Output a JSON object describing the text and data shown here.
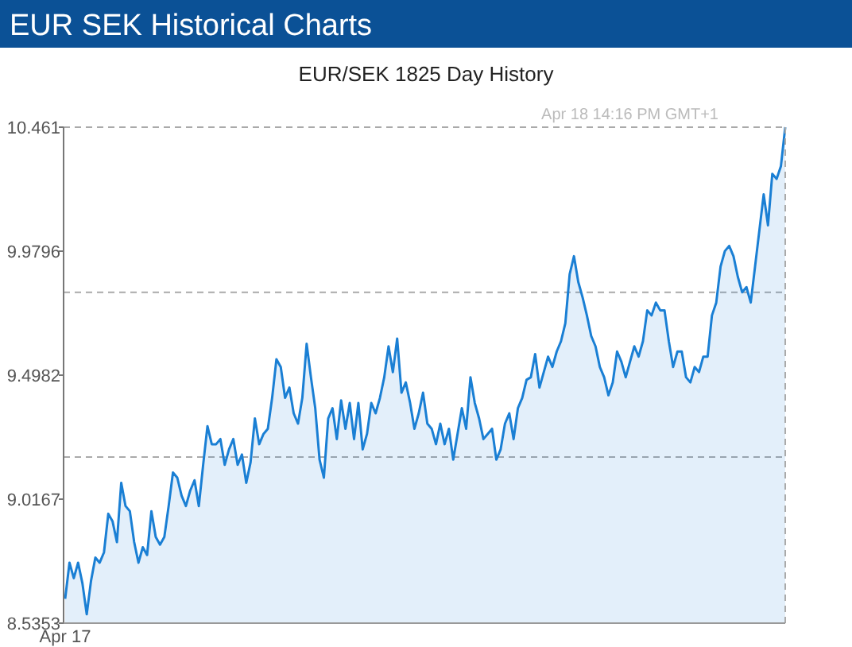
{
  "chart_data": {
    "type": "area",
    "title": "EUR SEK Historical Charts",
    "subtitle": "EUR/SEK  1825 Day History",
    "annotations": [
      "Apr 18  14:16 PM GMT+1"
    ],
    "categories": [
      "Apr 17",
      null,
      null,
      null,
      null,
      null,
      null,
      null,
      null,
      null,
      null,
      null,
      null,
      null,
      null,
      null,
      null,
      null,
      null,
      null,
      null,
      null,
      null,
      null,
      null,
      null,
      null,
      null,
      null,
      null,
      null,
      null,
      null,
      null,
      null,
      null,
      null,
      null,
      null,
      null,
      null,
      null,
      null,
      null,
      null,
      null,
      null,
      null,
      null,
      null,
      null,
      null,
      null,
      null,
      null,
      null,
      null,
      null,
      null,
      null,
      null,
      null,
      null,
      null,
      null,
      null,
      null,
      null,
      null,
      null,
      null,
      null,
      null,
      null,
      null,
      null,
      null,
      null,
      null,
      null,
      null,
      null,
      null,
      null,
      null,
      null,
      null,
      null,
      null,
      null,
      null,
      null,
      null,
      null,
      null,
      null,
      null,
      null,
      null,
      null,
      null,
      null,
      null,
      null,
      null,
      null,
      null,
      null,
      null,
      null,
      null,
      null,
      null,
      null,
      null,
      null,
      null,
      null,
      null,
      null,
      null,
      null,
      null,
      null,
      null,
      null,
      null,
      null,
      null,
      null,
      null,
      null,
      null,
      null,
      null,
      null,
      null,
      null,
      null,
      null,
      null,
      null,
      null,
      null,
      null,
      null,
      null,
      null,
      null,
      null,
      null,
      null,
      null,
      null,
      null,
      null,
      null,
      null,
      null,
      null,
      null,
      null,
      null,
      null,
      null,
      null,
      null,
      null
    ],
    "series": [
      {
        "color": "#1a7fd4",
        "values": [
          8.63,
          8.77,
          8.71,
          8.77,
          8.69,
          8.57,
          8.7,
          8.79,
          8.77,
          8.81,
          8.96,
          8.93,
          8.85,
          9.08,
          8.99,
          8.97,
          8.85,
          8.77,
          8.83,
          8.8,
          8.97,
          8.87,
          8.84,
          8.87,
          8.99,
          9.12,
          9.1,
          9.03,
          8.99,
          9.05,
          9.09,
          8.99,
          9.15,
          9.3,
          9.23,
          9.23,
          9.25,
          9.15,
          9.21,
          9.25,
          9.15,
          9.19,
          9.08,
          9.16,
          9.33,
          9.23,
          9.27,
          9.29,
          9.41,
          9.56,
          9.53,
          9.41,
          9.45,
          9.35,
          9.31,
          9.41,
          9.62,
          9.49,
          9.37,
          9.17,
          9.1,
          9.33,
          9.37,
          9.25,
          9.4,
          9.29,
          9.39,
          9.25,
          9.39,
          9.21,
          9.27,
          9.39,
          9.35,
          9.41,
          9.49,
          9.61,
          9.51,
          9.64,
          9.43,
          9.47,
          9.39,
          9.29,
          9.35,
          9.43,
          9.31,
          9.29,
          9.23,
          9.31,
          9.23,
          9.29,
          9.17,
          9.27,
          9.37,
          9.29,
          9.49,
          9.39,
          9.33,
          9.25,
          9.27,
          9.29,
          9.17,
          9.21,
          9.31,
          9.35,
          9.25,
          9.37,
          9.41,
          9.48,
          9.49,
          9.58,
          9.45,
          9.51,
          9.57,
          9.53,
          9.59,
          9.63,
          9.7,
          9.89,
          9.96,
          9.86,
          9.8,
          9.73,
          9.65,
          9.61,
          9.53,
          9.49,
          9.42,
          9.47,
          9.59,
          9.55,
          9.49,
          9.55,
          9.61,
          9.57,
          9.63,
          9.75,
          9.73,
          9.78,
          9.75,
          9.75,
          9.63,
          9.53,
          9.59,
          9.59,
          9.49,
          9.47,
          9.53,
          9.51,
          9.57,
          9.57,
          9.73,
          9.78,
          9.92,
          9.98,
          10.0,
          9.96,
          9.88,
          9.82,
          9.84,
          9.78,
          9.92,
          10.06,
          10.2,
          10.08,
          10.28,
          10.26,
          10.31,
          10.461
        ]
      }
    ],
    "ylim": [
      8.5353,
      10.461
    ],
    "yticks": [
      8.5353,
      9.0167,
      9.4982,
      9.9796,
      10.461
    ],
    "ref_lines": [
      {
        "axis": "y",
        "value": 9.82,
        "color": "#aaaaaa",
        "line_style": "dashed"
      },
      {
        "axis": "y",
        "value": 9.18,
        "color": "#aaaaaa",
        "line_style": "dashed"
      }
    ]
  }
}
